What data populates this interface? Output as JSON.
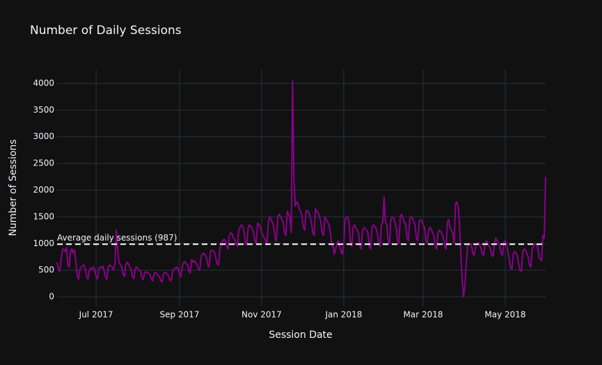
{
  "chart_data": {
    "type": "line",
    "title": "Number of Daily Sessions",
    "x_label": "Session Date",
    "y_label": "Number of Sessions",
    "color": "#8b008b",
    "grid": true,
    "ylim": [
      -169,
      4260
    ],
    "yticks": [
      0,
      500,
      1000,
      1500,
      2000,
      2500,
      3000,
      3500,
      4000
    ],
    "hline": {
      "value": 987,
      "label": "Average daily sessions (987)"
    },
    "categories": [
      null,
      null,
      null,
      null,
      null,
      null,
      null,
      null,
      null,
      null,
      null,
      null,
      null,
      null,
      null,
      null,
      null,
      null,
      null,
      null,
      null,
      null,
      null,
      null,
      null,
      null,
      null,
      null,
      null,
      "Jul 2017",
      null,
      null,
      null,
      null,
      null,
      null,
      null,
      null,
      null,
      null,
      null,
      null,
      null,
      null,
      null,
      null,
      null,
      null,
      null,
      null,
      null,
      null,
      null,
      null,
      null,
      null,
      null,
      null,
      null,
      null,
      null,
      null,
      null,
      null,
      null,
      null,
      null,
      null,
      null,
      null,
      null,
      null,
      null,
      null,
      null,
      null,
      null,
      null,
      null,
      null,
      null,
      null,
      null,
      null,
      null,
      null,
      null,
      null,
      null,
      null,
      null,
      "Sep 2017",
      null,
      null,
      null,
      null,
      null,
      null,
      null,
      null,
      null,
      null,
      null,
      null,
      null,
      null,
      null,
      null,
      null,
      null,
      null,
      null,
      null,
      null,
      null,
      null,
      null,
      null,
      null,
      null,
      null,
      null,
      null,
      null,
      null,
      null,
      null,
      null,
      null,
      null,
      null,
      null,
      null,
      null,
      null,
      null,
      null,
      null,
      null,
      null,
      null,
      null,
      null,
      null,
      null,
      null,
      null,
      null,
      null,
      null,
      null,
      null,
      "Nov 2017",
      null,
      null,
      null,
      null,
      null,
      null,
      null,
      null,
      null,
      null,
      null,
      null,
      null,
      null,
      null,
      null,
      null,
      null,
      null,
      null,
      null,
      null,
      null,
      null,
      null,
      null,
      null,
      null,
      null,
      null,
      null,
      null,
      null,
      null,
      null,
      null,
      null,
      null,
      null,
      null,
      null,
      null,
      null,
      null,
      null,
      null,
      null,
      null,
      null,
      null,
      null,
      null,
      null,
      null,
      null,
      null,
      null,
      null,
      null,
      null,
      "Jan 2018",
      null,
      null,
      null,
      null,
      null,
      null,
      null,
      null,
      null,
      null,
      null,
      null,
      null,
      null,
      null,
      null,
      null,
      null,
      null,
      null,
      null,
      null,
      null,
      null,
      null,
      null,
      null,
      null,
      null,
      null,
      null,
      null,
      null,
      null,
      null,
      null,
      null,
      null,
      null,
      null,
      null,
      null,
      null,
      null,
      null,
      null,
      null,
      null,
      null,
      null,
      null,
      null,
      null,
      null,
      null,
      null,
      null,
      null,
      "Mar 2018",
      null,
      null,
      null,
      null,
      null,
      null,
      null,
      null,
      null,
      null,
      null,
      null,
      null,
      null,
      null,
      null,
      null,
      null,
      null,
      null,
      null,
      null,
      null,
      null,
      null,
      null,
      null,
      null,
      null,
      null,
      null,
      null,
      null,
      null,
      null,
      null,
      null,
      null,
      null,
      null,
      null,
      null,
      null,
      null,
      null,
      null,
      null,
      null,
      null,
      null,
      null,
      null,
      null,
      null,
      null,
      null,
      null,
      null,
      null,
      null,
      "May 2018",
      null,
      null,
      null,
      null,
      null,
      null,
      null,
      null,
      null,
      null,
      null,
      null,
      null,
      null,
      null,
      null,
      null,
      null,
      null,
      null,
      null,
      null,
      null,
      null,
      null,
      null,
      null,
      null,
      null,
      null
    ],
    "values": [
      650,
      520,
      480,
      700,
      880,
      900,
      850,
      920,
      600,
      560,
      870,
      900,
      820,
      880,
      640,
      380,
      330,
      520,
      560,
      580,
      600,
      520,
      380,
      330,
      500,
      540,
      520,
      560,
      500,
      380,
      340,
      520,
      560,
      540,
      580,
      480,
      370,
      330,
      560,
      600,
      580,
      560,
      500,
      620,
      1250,
      900,
      650,
      600,
      560,
      420,
      380,
      600,
      650,
      620,
      560,
      520,
      380,
      340,
      520,
      560,
      540,
      500,
      480,
      360,
      320,
      450,
      470,
      460,
      440,
      420,
      330,
      300,
      420,
      460,
      440,
      400,
      380,
      300,
      280,
      420,
      460,
      450,
      420,
      380,
      300,
      320,
      500,
      520,
      540,
      560,
      520,
      420,
      380,
      560,
      640,
      660,
      620,
      600,
      480,
      450,
      700,
      650,
      680,
      640,
      600,
      520,
      500,
      760,
      800,
      820,
      780,
      740,
      600,
      560,
      850,
      880,
      860,
      840,
      720,
      620,
      600,
      900,
      1000,
      1050,
      1080,
      1060,
      950,
      900,
      1150,
      1200,
      1180,
      1100,
      1080,
      980,
      950,
      1250,
      1300,
      1350,
      1320,
      1200,
      1000,
      980,
      1300,
      1350,
      1320,
      1280,
      1200,
      1050,
      1000,
      1380,
      1360,
      1300,
      1200,
      1150,
      1100,
      1050,
      1000,
      1400,
      1500,
      1450,
      1400,
      1300,
      1100,
      1050,
      1500,
      1550,
      1500,
      1450,
      1400,
      1200,
      1150,
      1600,
      1550,
      1500,
      1200,
      4050,
      2200,
      1700,
      1780,
      1750,
      1650,
      1600,
      1500,
      1300,
      1250,
      1600,
      1620,
      1580,
      1500,
      1400,
      1200,
      1150,
      1650,
      1600,
      1580,
      1500,
      1400,
      1200,
      1150,
      1500,
      1450,
      1400,
      1350,
      1200,
      1000,
      950,
      800,
      900,
      1000,
      1050,
      950,
      850,
      800,
      1000,
      1450,
      1500,
      1480,
      1400,
      1000,
      950,
      1300,
      1350,
      1300,
      1250,
      1200,
      950,
      900,
      1250,
      1300,
      1280,
      1250,
      1200,
      950,
      900,
      1300,
      1350,
      1320,
      1280,
      1200,
      1000,
      950,
      1350,
      1400,
      1870,
      1400,
      1350,
      1050,
      1000,
      1450,
      1500,
      1480,
      1400,
      1300,
      1050,
      1000,
      1500,
      1550,
      1480,
      1400,
      1350,
      1100,
      1050,
      1450,
      1500,
      1480,
      1420,
      1350,
      1100,
      1050,
      1400,
      1450,
      1420,
      1350,
      1300,
      1050,
      1000,
      1250,
      1300,
      1280,
      1200,
      1150,
      950,
      900,
      1200,
      1250,
      1220,
      1180,
      1100,
      950,
      900,
      1400,
      1450,
      1300,
      1250,
      1200,
      1000,
      1750,
      1780,
      1700,
      1400,
      800,
      300,
      0,
      200,
      600,
      950,
      1000,
      1000,
      950,
      800,
      780,
      950,
      1000,
      1020,
      980,
      900,
      800,
      780,
      1000,
      1050,
      1000,
      950,
      900,
      780,
      760,
      1000,
      1100,
      1050,
      1000,
      950,
      800,
      780,
      1020,
      1050,
      1000,
      850,
      700,
      550,
      520,
      800,
      850,
      820,
      780,
      600,
      500,
      480,
      850,
      900,
      880,
      820,
      750,
      600,
      560,
      900,
      950,
      1000,
      980,
      950,
      750,
      700,
      680,
      1150,
      1100,
      2250
    ]
  }
}
